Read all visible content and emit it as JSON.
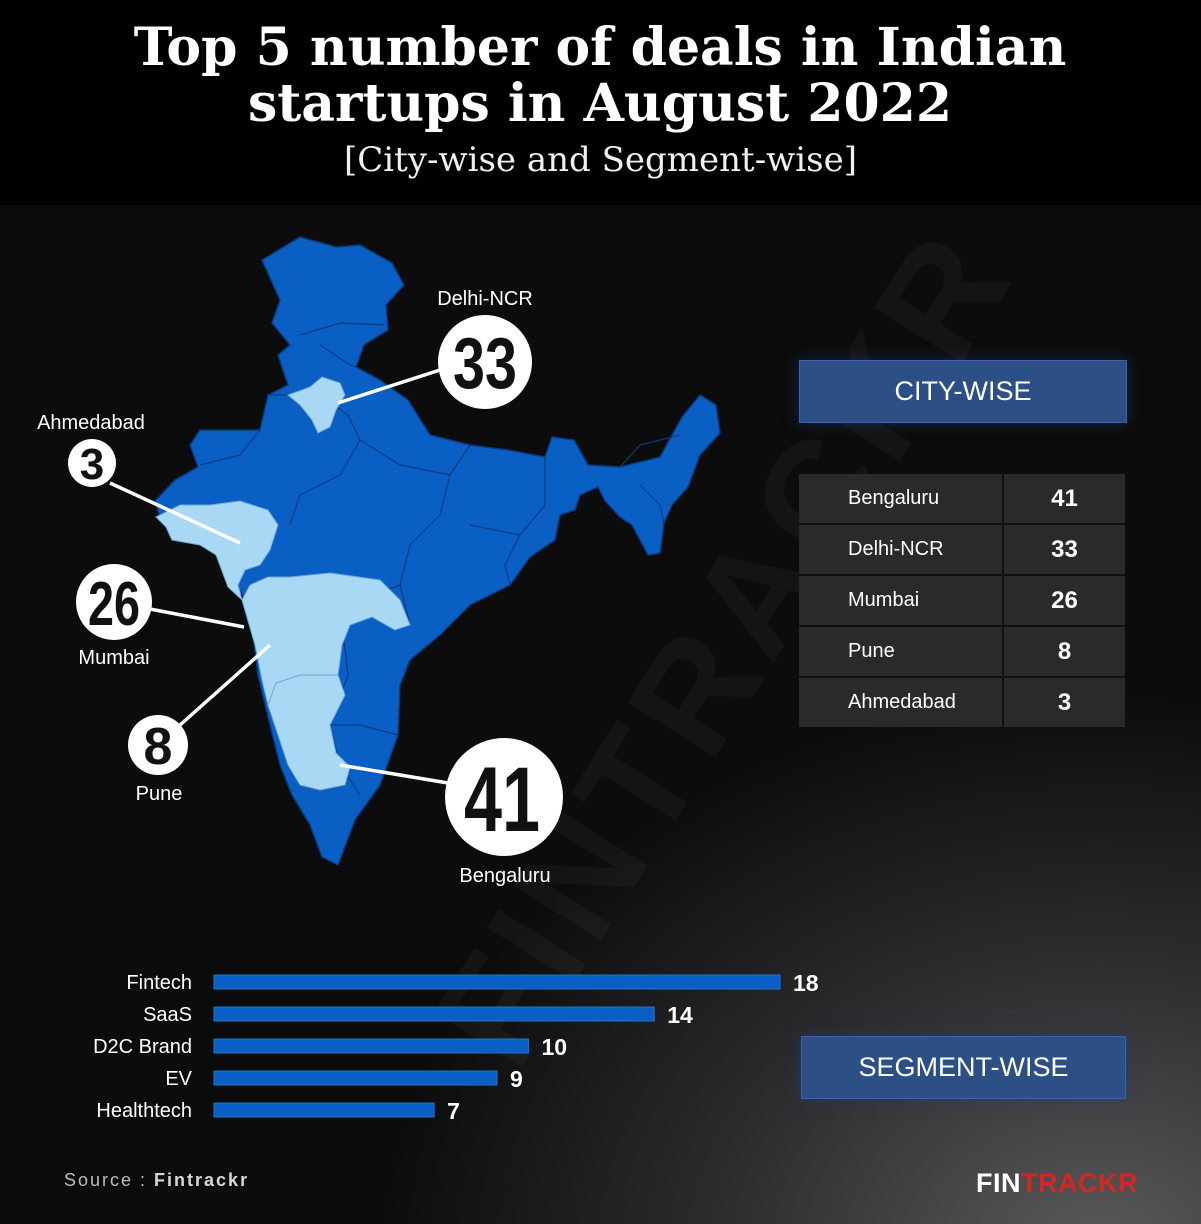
{
  "header": {
    "title": "Top 5 number of deals in Indian startups in August 2022",
    "subtitle": "[City-wise and Segment-wise]"
  },
  "colors": {
    "map_state": "#0a5fc4",
    "map_highlight": "#a8d8f4",
    "bar": "#0a5fc4",
    "label_box": "#2c4f86",
    "brand_red": "#d6271f"
  },
  "chart_data": [
    {
      "type": "table",
      "title": "CITY-WISE",
      "rows": [
        {
          "city": "Bengaluru",
          "value": 41
        },
        {
          "city": "Delhi-NCR",
          "value": 33
        },
        {
          "city": "Mumbai",
          "value": 26
        },
        {
          "city": "Pune",
          "value": 8
        },
        {
          "city": "Ahmedabad",
          "value": 3
        }
      ]
    },
    {
      "type": "bar",
      "orientation": "horizontal",
      "title": "SEGMENT-WISE",
      "categories": [
        "Fintech",
        "SaaS",
        "D2C Brand",
        "EV",
        "Healthtech"
      ],
      "values": [
        18,
        14,
        10,
        9,
        7
      ]
    }
  ],
  "map_callouts": [
    {
      "city": "Delhi-NCR",
      "value": "33"
    },
    {
      "city": "Ahmedabad",
      "value": "3"
    },
    {
      "city": "Mumbai",
      "value": "26"
    },
    {
      "city": "Pune",
      "value": "8"
    },
    {
      "city": "Bengaluru",
      "value": "41"
    }
  ],
  "footer": {
    "source_prefix": "Source : ",
    "source_name": "Fintrackr",
    "brand_a": "FIN",
    "brand_b": "TRACKR"
  },
  "watermark": "FINTRACKR"
}
